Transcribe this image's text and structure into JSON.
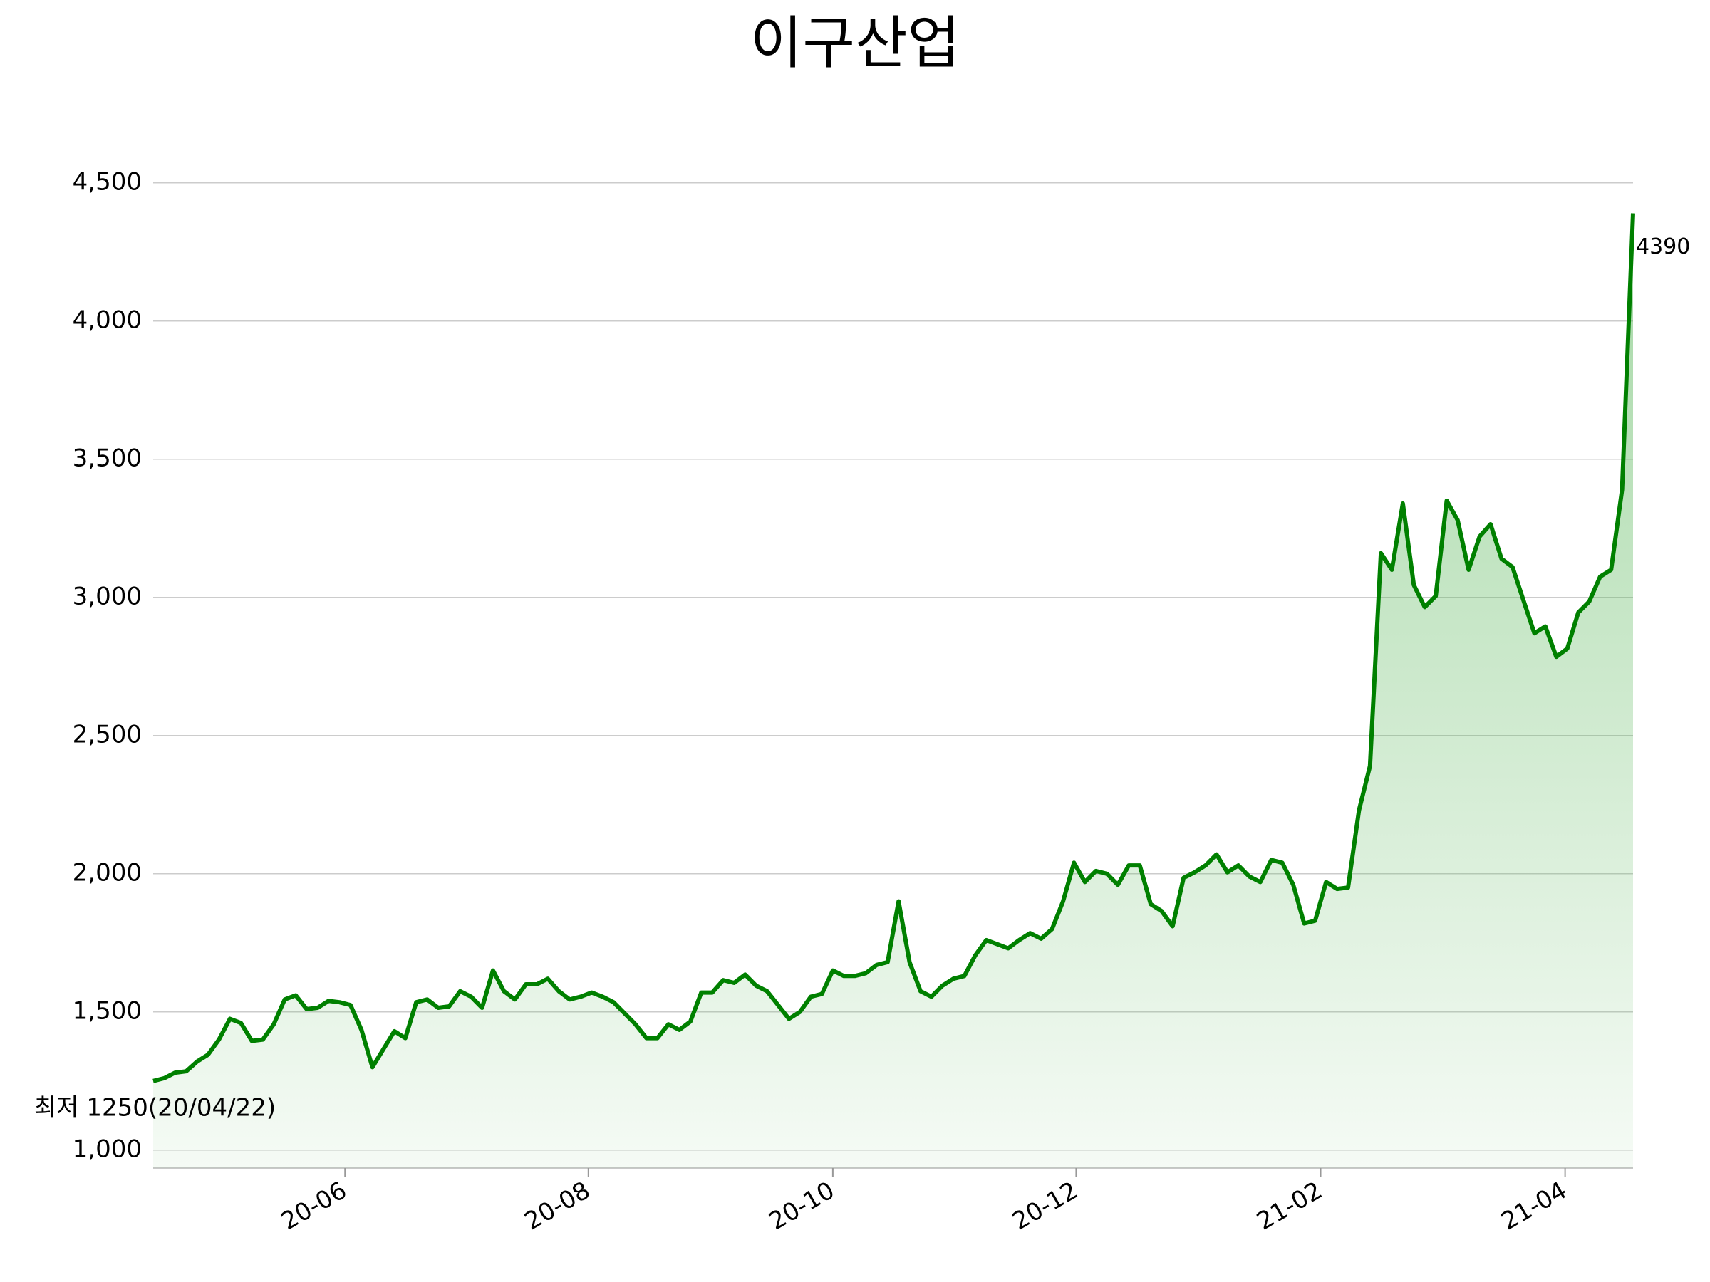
{
  "chart_data": {
    "type": "area-line",
    "title": "이구산업",
    "series": [
      {
        "name": "이구산업",
        "color": "#008000",
        "values": [
          1250,
          1260,
          1280,
          1285,
          1320,
          1345,
          1400,
          1475,
          1460,
          1395,
          1400,
          1455,
          1545,
          1560,
          1510,
          1515,
          1540,
          1535,
          1525,
          1435,
          1300,
          1365,
          1430,
          1405,
          1535,
          1545,
          1515,
          1520,
          1575,
          1555,
          1515,
          1650,
          1575,
          1545,
          1600,
          1600,
          1620,
          1575,
          1545,
          1555,
          1570,
          1555,
          1535,
          1495,
          1455,
          1405,
          1405,
          1455,
          1435,
          1465,
          1570,
          1570,
          1615,
          1605,
          1635,
          1595,
          1575,
          1525,
          1475,
          1500,
          1555,
          1565,
          1650,
          1630,
          1630,
          1640,
          1670,
          1680,
          1900,
          1680,
          1575,
          1555,
          1595,
          1620,
          1630,
          1705,
          1760,
          1745,
          1730,
          1760,
          1785,
          1765,
          1800,
          1900,
          2040,
          1970,
          2010,
          2000,
          1960,
          2030,
          2030,
          1890,
          1865,
          1810,
          1985,
          2005,
          2030,
          2070,
          2005,
          2030,
          1990,
          1970,
          2050,
          2040,
          1960,
          1820,
          1830,
          1970,
          1945,
          1950,
          2230,
          2390,
          3160,
          3100,
          3340,
          3045,
          2965,
          3005,
          3350,
          3280,
          3100,
          3220,
          3265,
          3140,
          3110,
          2990,
          2870,
          2895,
          2785,
          2815,
          2945,
          2985,
          3075,
          3100,
          3390,
          4390
        ]
      }
    ],
    "xlim": [
      0,
      135
    ],
    "xticks": [
      {
        "value": 17.5,
        "label": "20-06"
      },
      {
        "value": 39.7,
        "label": "20-08"
      },
      {
        "value": 62,
        "label": "20-10"
      },
      {
        "value": 84.2,
        "label": "20-12"
      },
      {
        "value": 106.5,
        "label": "21-02"
      },
      {
        "value": 128.8,
        "label": "21-04"
      }
    ],
    "ylim": [
      935,
      4600
    ],
    "yticks": [
      {
        "value": 1000,
        "label": "1,000"
      },
      {
        "value": 1500,
        "label": "1,500"
      },
      {
        "value": 2000,
        "label": "2,000"
      },
      {
        "value": 2500,
        "label": "2,500"
      },
      {
        "value": 3000,
        "label": "3,000"
      },
      {
        "value": 3500,
        "label": "3,500"
      },
      {
        "value": 4000,
        "label": "4,000"
      },
      {
        "value": 4500,
        "label": "4,500"
      }
    ],
    "grid": true,
    "annotations": [
      {
        "text": "4390",
        "color": "#000000"
      },
      {
        "text": "최저 1250(20/04/22)",
        "color": "#0000ff"
      }
    ]
  }
}
